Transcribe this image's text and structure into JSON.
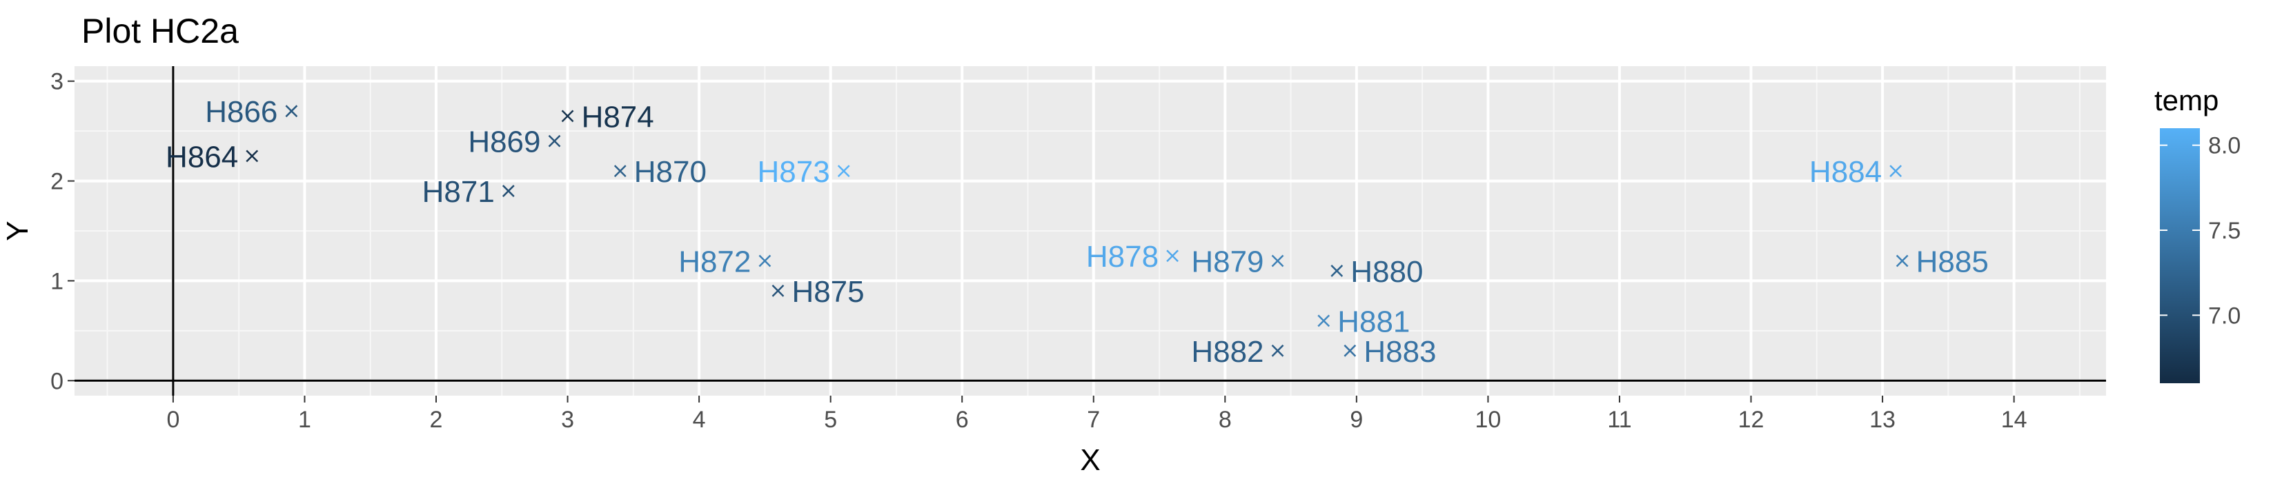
{
  "chart_data": {
    "type": "scatter",
    "title": "Plot HC2a",
    "xlabel": "X",
    "ylabel": "Y",
    "xlim": [
      -0.75,
      14.7
    ],
    "ylim": [
      -0.15,
      3.15
    ],
    "x_ticks": [
      0,
      1,
      2,
      3,
      4,
      5,
      6,
      7,
      8,
      9,
      10,
      11,
      12,
      13,
      14
    ],
    "y_ticks": [
      0,
      1,
      2,
      3
    ],
    "grid": true,
    "reference_lines": {
      "x": 0,
      "y": 0
    },
    "marker": "x",
    "legend": {
      "title": "temp",
      "placement": "right",
      "type": "colorbar",
      "range": [
        6.6,
        8.1
      ],
      "ticks": [
        "7.0",
        "7.5",
        "8.0"
      ],
      "colors": [
        "#132b43",
        "#56b1f7"
      ]
    },
    "points": [
      {
        "label": "H864",
        "x": 0.6,
        "y": 2.25,
        "temp": 6.65
      },
      {
        "label": "H866",
        "x": 0.9,
        "y": 2.7,
        "temp": 7.1
      },
      {
        "label": "H869",
        "x": 2.9,
        "y": 2.4,
        "temp": 7.05
      },
      {
        "label": "H871",
        "x": 2.55,
        "y": 1.9,
        "temp": 7.0
      },
      {
        "label": "H874",
        "x": 3.0,
        "y": 2.65,
        "temp": 6.7
      },
      {
        "label": "H870",
        "x": 3.4,
        "y": 2.1,
        "temp": 7.2
      },
      {
        "label": "H873",
        "x": 5.1,
        "y": 2.1,
        "temp": 8.1
      },
      {
        "label": "H872",
        "x": 4.5,
        "y": 1.2,
        "temp": 7.55
      },
      {
        "label": "H875",
        "x": 4.6,
        "y": 0.9,
        "temp": 7.05
      },
      {
        "label": "H878",
        "x": 7.6,
        "y": 1.25,
        "temp": 8.0
      },
      {
        "label": "H879",
        "x": 8.4,
        "y": 1.2,
        "temp": 7.55
      },
      {
        "label": "H880",
        "x": 8.85,
        "y": 1.1,
        "temp": 7.2
      },
      {
        "label": "H881",
        "x": 8.75,
        "y": 0.6,
        "temp": 7.65
      },
      {
        "label": "H882",
        "x": 8.4,
        "y": 0.3,
        "temp": 7.15
      },
      {
        "label": "H883",
        "x": 8.95,
        "y": 0.3,
        "temp": 7.4
      },
      {
        "label": "H884",
        "x": 13.1,
        "y": 2.1,
        "temp": 8.0
      },
      {
        "label": "H885",
        "x": 13.15,
        "y": 1.2,
        "temp": 7.55
      }
    ]
  }
}
